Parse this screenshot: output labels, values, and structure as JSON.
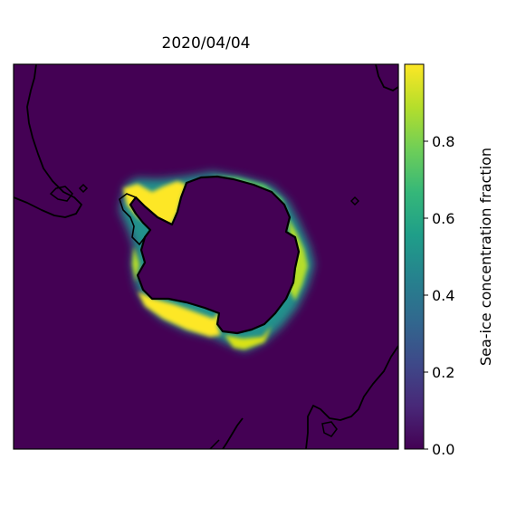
{
  "title": "2020/04/04",
  "map": {
    "projection": "south-polar-stereographic",
    "background_color": "#440154",
    "coastline_color": "#000000",
    "features": [
      "antarctica-coastline",
      "south-america-tip",
      "africa-coastline",
      "australia-coastline",
      "new-zealand"
    ]
  },
  "colorbar": {
    "label": "Sea-ice concentration fraction",
    "colormap": "viridis",
    "range": [
      0.0,
      1.0
    ],
    "ticks": [
      0.0,
      0.2,
      0.4,
      0.6,
      0.8
    ],
    "tick_labels": [
      "0.0",
      "0.2",
      "0.4",
      "0.6",
      "0.8"
    ],
    "stops": [
      "#440154",
      "#482878",
      "#3e4989",
      "#31688e",
      "#26828e",
      "#1f9e89",
      "#35b779",
      "#6ece58",
      "#b5de2b",
      "#fde725"
    ]
  }
}
